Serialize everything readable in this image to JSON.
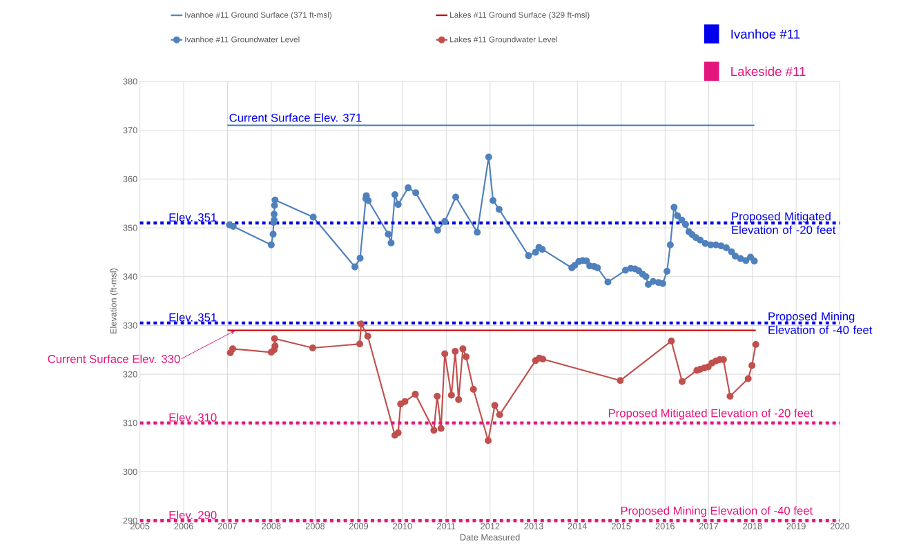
{
  "chart_data": {
    "type": "line",
    "xlabel": "Date Measured",
    "ylabel": "Elevation (ft-msl)",
    "xlim": [
      "2005-04-20",
      "2020-01-08"
    ],
    "ylim": [
      290,
      380
    ],
    "xticks": [
      {
        "value": "2005-04-20",
        "label": "2005"
      },
      {
        "value": "2006-03-22",
        "label": "2006"
      },
      {
        "value": "2007-02-21",
        "label": "2007"
      },
      {
        "value": "2008-01-23",
        "label": "2008"
      },
      {
        "value": "2008-12-25",
        "label": "2008"
      },
      {
        "value": "2009-11-25",
        "label": "2009"
      },
      {
        "value": "2010-10-27",
        "label": "2010"
      },
      {
        "value": "2011-09-28",
        "label": "2011"
      },
      {
        "value": "2012-08-30",
        "label": "2012"
      },
      {
        "value": "2013-08-01",
        "label": "2013"
      },
      {
        "value": "2014-07-02",
        "label": "2014"
      },
      {
        "value": "2015-06-03",
        "label": "2015"
      },
      {
        "value": "2016-05-05",
        "label": "2016"
      },
      {
        "value": "2017-04-06",
        "label": "2017"
      },
      {
        "value": "2018-03-08",
        "label": "2018"
      },
      {
        "value": "2019-02-06",
        "label": "2019"
      },
      {
        "value": "2020-01-08",
        "label": "2020"
      }
    ],
    "yticks": [
      290,
      300,
      310,
      320,
      330,
      340,
      350,
      360,
      370,
      380
    ],
    "grid": true,
    "legend": "top",
    "series": [
      {
        "name": "Ivanhoe #11 Ground Surface (371 ft-msl)",
        "color": "#4f81bd",
        "x": [
          "2007-02-21",
          "2018-03-22"
        ],
        "values": [
          371,
          371
        ]
      },
      {
        "name": "Lakes #11 Ground Surface (329 ft-msl)",
        "color": "#c00000",
        "x": [
          "2007-02-21",
          "2018-04-02"
        ],
        "values": [
          329,
          329
        ]
      },
      {
        "name": "Ivanhoe #11 Groundwater Level",
        "color": "#4f81bd",
        "marker": "circle",
        "x": [
          "2007-03-08",
          "2007-04-06",
          "2008-01-23",
          "2008-02-06",
          "2008-02-10",
          "2008-02-14",
          "2008-02-14",
          "2008-02-17",
          "2008-02-21",
          "2008-12-10",
          "2009-10-27",
          "2009-12-06",
          "2010-01-19",
          "2010-01-23",
          "2010-02-06",
          "2010-07-10",
          "2010-08-01",
          "2010-08-30",
          "2010-09-24",
          "2010-12-10",
          "2011-02-06",
          "2011-07-24",
          "2011-09-17",
          "2011-12-10",
          "2012-05-23",
          "2012-08-19",
          "2012-09-21",
          "2012-11-07",
          "2013-06-22",
          "2013-08-15",
          "2013-09-10",
          "2013-10-05",
          "2014-05-20",
          "2014-06-11",
          "2014-07-13",
          "2014-08-12",
          "2014-09-10",
          "2014-10-05",
          "2014-11-07",
          "2014-12-03",
          "2015-02-21",
          "2015-07-06",
          "2015-08-15",
          "2015-09-17",
          "2015-10-16",
          "2015-11-15",
          "2015-12-10",
          "2015-12-28",
          "2016-02-03",
          "2016-03-15",
          "2016-04-17",
          "2016-05-20",
          "2016-06-14",
          "2016-07-13",
          "2016-08-08",
          "2016-09-10",
          "2016-10-09",
          "2016-11-04",
          "2016-11-29",
          "2016-12-28",
          "2017-01-30",
          "2017-03-11",
          "2017-04-21",
          "2017-05-31",
          "2017-07-10",
          "2017-08-19",
          "2017-09-28",
          "2017-10-27",
          "2017-12-06",
          "2018-01-16",
          "2018-02-21",
          "2018-03-22"
        ],
        "values": [
          350.6,
          350.3,
          346.5,
          348.7,
          351.1,
          351.6,
          352.8,
          354.6,
          355.7,
          352.2,
          342.0,
          343.8,
          356.0,
          356.6,
          355.6,
          348.7,
          346.9,
          356.8,
          354.8,
          358.2,
          357.2,
          349.5,
          351.3,
          356.3,
          349.1,
          364.5,
          355.6,
          353.8,
          344.3,
          345.0,
          346.0,
          345.6,
          341.8,
          342.3,
          343.1,
          343.3,
          343.2,
          342.2,
          342.1,
          341.8,
          338.9,
          341.3,
          341.7,
          341.6,
          341.2,
          340.5,
          340.0,
          338.4,
          339.0,
          338.8,
          338.6,
          341.1,
          346.5,
          354.2,
          352.5,
          351.6,
          350.7,
          349.2,
          348.6,
          348.0,
          347.5,
          346.8,
          346.5,
          346.5,
          346.3,
          345.9,
          345.1,
          344.2,
          343.7,
          343.3,
          344.0,
          343.2
        ]
      },
      {
        "name": "Lakes #11 Groundwater Level",
        "color": "#c0504d",
        "marker": "circle",
        "x": [
          "2007-03-15",
          "2007-04-02",
          "2008-01-23",
          "2008-02-14",
          "2008-02-21",
          "2008-02-17",
          "2008-12-06",
          "2009-12-03",
          "2009-12-14",
          "2010-02-03",
          "2010-08-30",
          "2010-09-24",
          "2010-10-13",
          "2010-11-15",
          "2011-02-03",
          "2011-06-25",
          "2011-07-21",
          "2011-08-19",
          "2011-09-17",
          "2011-11-07",
          "2011-12-06",
          "2012-01-01",
          "2012-02-03",
          "2012-02-28",
          "2012-04-24",
          "2012-08-15",
          "2012-10-05",
          "2012-11-11",
          "2013-08-15",
          "2013-09-13",
          "2013-10-09",
          "2015-05-27",
          "2016-06-22",
          "2016-09-13",
          "2017-01-05",
          "2017-01-30",
          "2017-03-04",
          "2017-04-02",
          "2017-05-01",
          "2017-05-31",
          "2017-06-29",
          "2017-07-28",
          "2017-09-17",
          "2018-02-03",
          "2018-03-04",
          "2018-04-02"
        ],
        "values": [
          324.4,
          325.2,
          324.5,
          325.0,
          325.8,
          327.3,
          325.4,
          326.2,
          330.3,
          327.8,
          307.5,
          308.0,
          313.9,
          314.4,
          315.9,
          308.5,
          315.5,
          308.9,
          324.2,
          315.7,
          324.7,
          314.8,
          325.2,
          323.6,
          316.9,
          306.4,
          313.6,
          311.7,
          322.8,
          323.3,
          323.1,
          318.7,
          326.8,
          318.5,
          320.8,
          321.0,
          321.3,
          321.5,
          322.3,
          322.7,
          323.0,
          323.0,
          315.5,
          319.1,
          321.8,
          326.1
        ]
      }
    ],
    "ref_lines": [
      {
        "axis": "y",
        "value": 351,
        "label": "Elev. 351",
        "color": "#0000ee",
        "line_style": "dotted"
      },
      {
        "axis": "y",
        "value": 330.5,
        "label": "Elev. 351",
        "color": "#0000ee",
        "line_style": "dotted"
      },
      {
        "axis": "y",
        "value": 310,
        "label": "Elev. 310",
        "color": "#e6147d",
        "line_style": "dotted"
      },
      {
        "axis": "y",
        "value": 290,
        "label": "Elev. 290",
        "color": "#e6147d",
        "line_style": "dotted"
      }
    ],
    "annotations": [
      "Ivanhoe #11",
      "Lakeside #11",
      {
        "text": "Current Surface Elev. 371",
        "x": "2007-02-21",
        "y": 371
      },
      {
        "text": "Current Surface Elev. 330",
        "x": "2007-04-24",
        "y": 329
      },
      {
        "text": "Proposed Mitigated Elevation of -20 feet",
        "x": "2017-09-24",
        "y": 351
      },
      {
        "text": "Proposed Mining Elevation of -40 feet",
        "x": "2018-07-02",
        "y": 330.5
      },
      {
        "text": "Proposed Mitigated Elevation of -20 feet",
        "x": "2015-02-10",
        "y": 310
      },
      {
        "text": "Proposed Mining Elevation of -40 feet",
        "x": "2015-05-16",
        "y": 290
      }
    ]
  }
}
